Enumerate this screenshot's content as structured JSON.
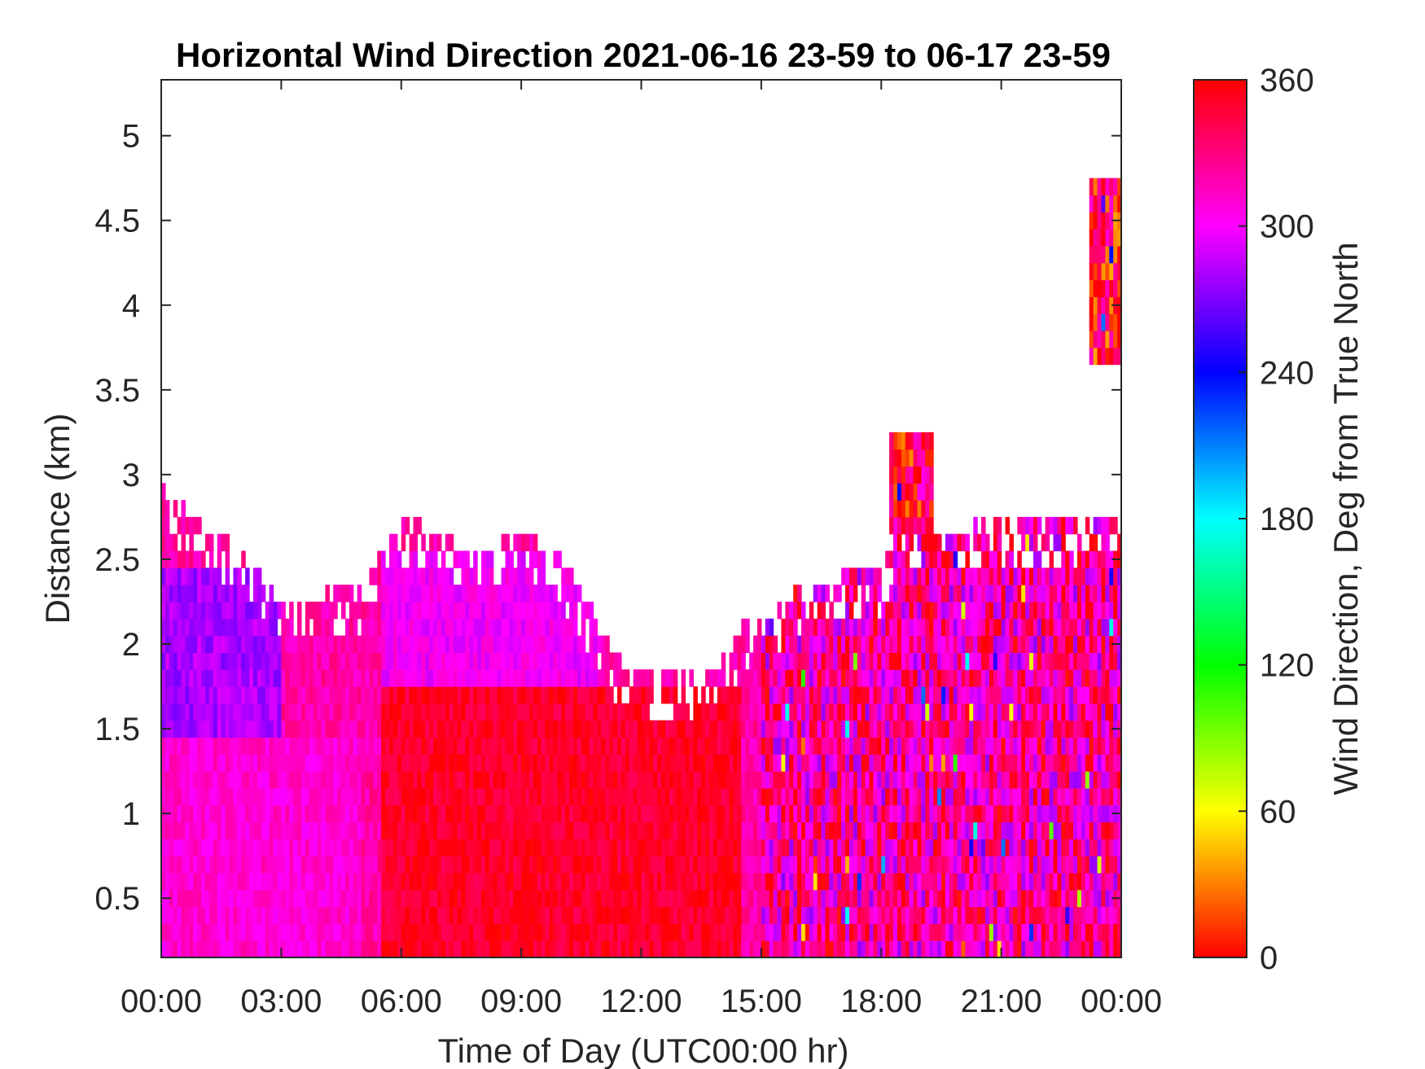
{
  "chart_data": {
    "type": "heatmap",
    "title": "Horizontal Wind Direction 2021-06-16 23-59 to 06-17 23-59",
    "xlabel": "Time of Day (UTC00:00 hr)",
    "ylabel": "Distance (km)",
    "colorbar_label": "Wind Direction, Deg from True North",
    "x_tick_labels": [
      "00:00",
      "03:00",
      "06:00",
      "09:00",
      "12:00",
      "15:00",
      "18:00",
      "21:00",
      "00:00"
    ],
    "x_tick_hours": [
      0,
      3,
      6,
      9,
      12,
      15,
      18,
      21,
      24
    ],
    "xlim_hours": [
      0,
      24
    ],
    "y_ticks": [
      0.5,
      1,
      1.5,
      2,
      2.5,
      3,
      3.5,
      4,
      4.5,
      5
    ],
    "y_tick_labels": [
      "0.5",
      "1",
      "1.5",
      "2",
      "2.5",
      "3",
      "3.5",
      "4",
      "4.5",
      "5"
    ],
    "ylim": [
      0.15,
      5.33
    ],
    "colorbar_ticks": [
      0,
      60,
      120,
      180,
      240,
      300,
      360
    ],
    "colorbar_tick_labels": [
      "0",
      "60",
      "120",
      "180",
      "240",
      "300",
      "360"
    ],
    "clim": [
      0,
      360
    ],
    "colormap": "hsv",
    "grid": false,
    "data_top_km": [
      [
        0,
        2.95
      ],
      [
        1,
        2.7
      ],
      [
        2,
        2.55
      ],
      [
        3,
        2.25
      ],
      [
        4,
        2.3
      ],
      [
        5,
        2.35
      ],
      [
        6,
        2.75
      ],
      [
        7,
        2.65
      ],
      [
        8,
        2.55
      ],
      [
        9,
        2.7
      ],
      [
        10,
        2.5
      ],
      [
        11,
        2.1
      ],
      [
        11.5,
        1.88
      ],
      [
        12,
        1.85
      ],
      [
        13,
        1.82
      ],
      [
        14,
        1.9
      ],
      [
        14.5,
        2.1
      ],
      [
        15,
        2.15
      ],
      [
        16,
        2.35
      ],
      [
        17,
        2.4
      ],
      [
        18,
        2.45
      ],
      [
        18.5,
        2.7
      ],
      [
        19,
        2.65
      ],
      [
        20,
        2.7
      ],
      [
        21,
        2.75
      ],
      [
        22,
        2.75
      ],
      [
        23,
        2.75
      ],
      [
        24,
        2.75
      ]
    ],
    "regions": [
      {
        "name": "early-upper",
        "hours": [
          0,
          3
        ],
        "km": [
          1.5,
          2.5
        ],
        "direction_deg": 280
      },
      {
        "name": "lower-left",
        "hours": [
          0,
          5
        ],
        "km": [
          0.15,
          1.5
        ],
        "direction_deg": 310
      },
      {
        "name": "morning-upper",
        "hours": [
          5.5,
          11
        ],
        "km": [
          1.8,
          2.6
        ],
        "direction_deg": 300
      },
      {
        "name": "morning-core",
        "hours": [
          5.5,
          14.5
        ],
        "km": [
          0.15,
          1.8
        ],
        "direction_deg": 350
      },
      {
        "name": "afternoon-mixed",
        "hours": [
          15,
          24
        ],
        "km": [
          0.15,
          2.7
        ],
        "direction_deg": 320
      },
      {
        "name": "patch-3km",
        "hours": [
          18.2,
          19.3
        ],
        "km": [
          2.7,
          3.25
        ],
        "direction_deg": 348
      },
      {
        "name": "patch-4km",
        "hours": [
          23.2,
          24
        ],
        "km": [
          3.7,
          4.7
        ],
        "direction_deg": 355
      }
    ]
  }
}
